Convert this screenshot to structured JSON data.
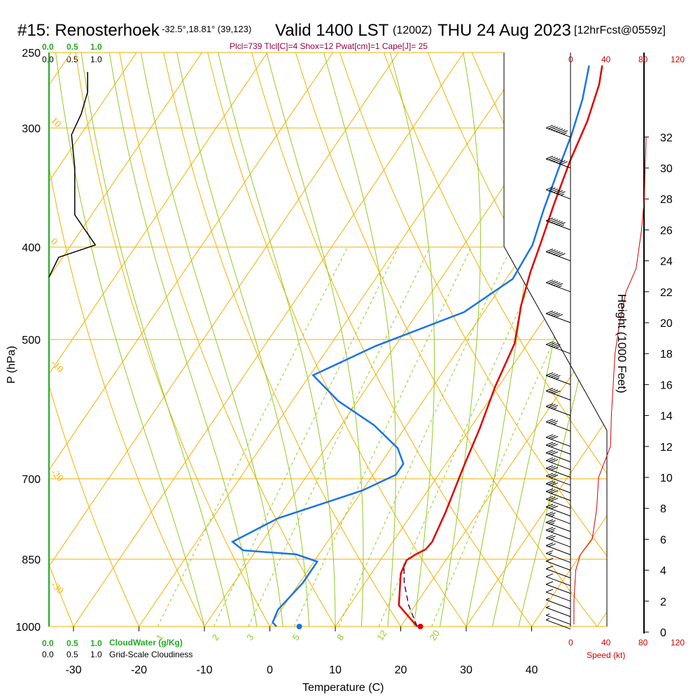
{
  "header": {
    "station": "#15: Renosterhoek",
    "location": "-32.5°,18.81° (39,123)",
    "valid": "Valid 1400 LST",
    "zulu": "(1200Z)",
    "date": "THU 24 Aug 2023",
    "forecast": "[12hrFcst@0559z]",
    "indices": "Plcl=739 Tlcl[C]=4 Shox=12 Pwat[cm]=1 Cape[J]= 25"
  },
  "labels": {
    "ylabel": "P (hPa)",
    "xlabel": "Temperature (C)",
    "height_label": "Height (1000 Feet)",
    "speed_label": "Speed (kt)",
    "cloudwater_label": "CloudWater (g/Kg)",
    "cloudiness_label": "Grid-Scale Cloudiness"
  },
  "scales": {
    "top_green": [
      "0.0",
      "0.5",
      "1.0"
    ],
    "top_black": [
      "0.0",
      "0.5",
      "1.0"
    ],
    "bottom_green": [
      "0.0",
      "0.5",
      "1.0"
    ],
    "bottom_black": [
      "0.0",
      "0.5",
      "1.0"
    ],
    "speed_ticks": [
      "0",
      "40",
      "80",
      "120"
    ]
  },
  "colors": {
    "isotherm": "#f0b000",
    "dry_adiabat": "#f0b000",
    "moist_adiabat": "#90cc20",
    "mixing_ratio": "#90cc20",
    "temperature": "#e00000",
    "dewpoint": "#1a73e8",
    "cloudwater": "#22aa22",
    "speed": "#d40000",
    "indices": "#990044"
  },
  "chart_data": {
    "type": "line",
    "title": "#15: Renosterhoek",
    "xlabel": "Temperature (C)",
    "ylabel": "P (hPa)",
    "xlim": [
      -35,
      50
    ],
    "ylim": [
      1000,
      250
    ],
    "x_ticks": [
      -30,
      -20,
      -10,
      0,
      10,
      20,
      30,
      40
    ],
    "pressure_ticks": [
      1000,
      850,
      700,
      500,
      400,
      300,
      250
    ],
    "pressure_levels": [
      1000,
      850,
      700,
      500,
      400,
      300
    ],
    "height_ticks": [
      0,
      2,
      4,
      6,
      8,
      10,
      12,
      14,
      16,
      18,
      20,
      22,
      24,
      26,
      28,
      30,
      32
    ],
    "isotherm_labels": [
      {
        "text": "0",
        "t": 35,
        "p": 335
      },
      {
        "text": "10",
        "t": 41,
        "p": 425
      },
      {
        "text": "20",
        "t": 45,
        "p": 475
      },
      {
        "text": "30",
        "t": 49,
        "p": 578
      }
    ],
    "dry_adiabat_labels": [
      {
        "text": "10",
        "p": 295
      },
      {
        "text": "0",
        "p": 395
      },
      {
        "text": "-10",
        "p": 530
      },
      {
        "text": "-20",
        "p": 690
      },
      {
        "text": "-30",
        "p": 905
      }
    ],
    "mixing_ratio_labels": [
      "1",
      "2",
      "3",
      "5",
      "8",
      "12",
      "20"
    ],
    "mixing_ratio_values": [
      1,
      2,
      3,
      5,
      8,
      12,
      20
    ],
    "series": [
      {
        "name": "Temperature",
        "points": [
          [
            22.5,
            1000
          ],
          [
            17.5,
            950
          ],
          [
            14.5,
            880
          ],
          [
            14.0,
            852
          ],
          [
            14.8,
            840
          ],
          [
            15.8,
            830
          ],
          [
            16.0,
            815
          ],
          [
            15.0,
            760
          ],
          [
            13.0,
            680
          ],
          [
            11.5,
            620
          ],
          [
            9.5,
            560
          ],
          [
            8.0,
            505
          ],
          [
            5.0,
            460
          ],
          [
            3.0,
            425
          ],
          [
            1.5,
            395
          ],
          [
            -0.5,
            360
          ],
          [
            -2.5,
            325
          ],
          [
            -4.0,
            295
          ],
          [
            -6.0,
            270
          ],
          [
            -7.5,
            258
          ]
        ]
      },
      {
        "name": "Dewpoint",
        "points": [
          [
            1.0,
            1000
          ],
          [
            0.0,
            990
          ],
          [
            -0.5,
            960
          ],
          [
            0.5,
            900
          ],
          [
            0.5,
            855
          ],
          [
            -3.5,
            840
          ],
          [
            -12.0,
            832
          ],
          [
            -14.5,
            815
          ],
          [
            -10.0,
            770
          ],
          [
            0.0,
            720
          ],
          [
            3.5,
            693
          ],
          [
            3.5,
            675
          ],
          [
            1.0,
            650
          ],
          [
            -5.0,
            615
          ],
          [
            -13.0,
            580
          ],
          [
            -19.5,
            545
          ],
          [
            -13.0,
            508
          ],
          [
            -3.0,
            468
          ],
          [
            1.0,
            432
          ],
          [
            0.5,
            398
          ],
          [
            -1.5,
            365
          ],
          [
            -3.5,
            330
          ],
          [
            -5.0,
            305
          ],
          [
            -7.0,
            280
          ],
          [
            -9.5,
            258
          ]
        ]
      },
      {
        "name": "Parcel",
        "points": [
          [
            22.5,
            1000
          ],
          [
            19.0,
            950
          ],
          [
            16.0,
            900
          ],
          [
            14.0,
            860
          ]
        ]
      }
    ],
    "surface_temperature": {
      "t": 23.0,
      "p": 1000
    },
    "surface_dewpoint": {
      "t": 4.5,
      "p": 1000
    },
    "cloudiness_profile": [
      [
        0.0,
        430
      ],
      [
        0.15,
        410
      ],
      [
        0.72,
        398
      ],
      [
        0.4,
        370
      ],
      [
        0.4,
        330
      ],
      [
        0.35,
        305
      ],
      [
        0.5,
        290
      ],
      [
        0.6,
        275
      ],
      [
        0.6,
        262
      ]
    ],
    "height_profile": {
      "heights_kft": [
        0.5,
        2,
        4,
        5,
        6,
        8,
        10,
        12,
        14,
        16,
        18,
        20,
        22,
        23.5,
        26,
        28,
        30,
        32
      ],
      "speeds_kt": [
        3,
        3,
        5,
        10,
        23,
        28,
        30,
        43,
        44,
        46,
        48,
        53,
        60,
        71,
        77,
        80,
        81,
        82
      ]
    },
    "wind_barbs": {
      "heights_kft": [
        0.2,
        0.5,
        1,
        1.5,
        2,
        2.5,
        3,
        3.5,
        4,
        4.5,
        5,
        5.5,
        6,
        6.5,
        7,
        7.5,
        8,
        8.5,
        9,
        9.5,
        10,
        10.5,
        11,
        11.5,
        12,
        13,
        14,
        15,
        16,
        18,
        20,
        22,
        24,
        26,
        28,
        30,
        32
      ],
      "speeds_kt": [
        5,
        5,
        5,
        5,
        10,
        10,
        10,
        10,
        10,
        15,
        20,
        25,
        25,
        25,
        25,
        30,
        30,
        30,
        30,
        30,
        30,
        30,
        30,
        30,
        30,
        35,
        35,
        40,
        45,
        45,
        50,
        55,
        60,
        65,
        65,
        70,
        75
      ]
    }
  }
}
